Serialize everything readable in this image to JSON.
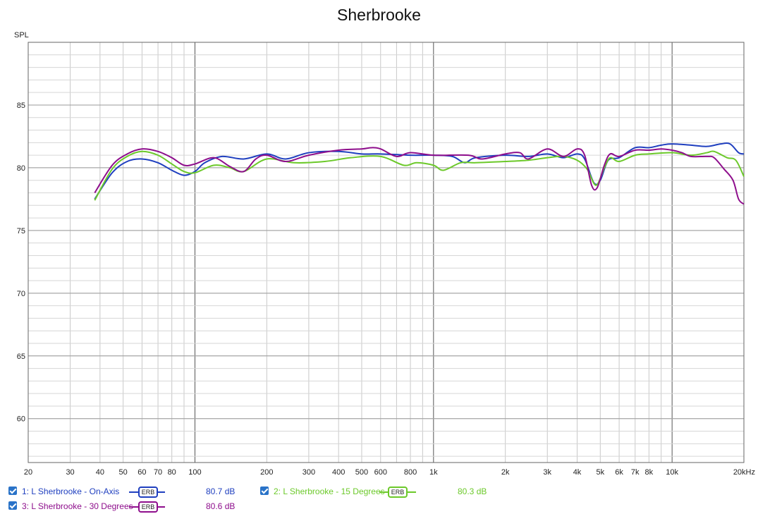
{
  "chart_data": {
    "type": "line",
    "title": "Sherbrooke",
    "ylabel": "SPL",
    "xlabel": "",
    "xscale": "log",
    "xlim": [
      20,
      20000
    ],
    "ylim": [
      56.5,
      90
    ],
    "grid": true,
    "y_ticks": [
      60,
      65,
      70,
      75,
      80,
      85
    ],
    "y_tick_labels": [
      "60",
      "65",
      "70",
      "75",
      "80",
      "85"
    ],
    "x_ticks": [
      20,
      30,
      40,
      50,
      60,
      70,
      80,
      100,
      200,
      300,
      400,
      500,
      600,
      800,
      1000,
      2000,
      3000,
      4000,
      5000,
      6000,
      7000,
      8000,
      10000,
      20000
    ],
    "x_tick_labels": [
      "20",
      "30",
      "40",
      "50",
      "60",
      "70",
      "80",
      "100",
      "200",
      "300",
      "400",
      "500",
      "600",
      "800",
      "1k",
      "2k",
      "3k",
      "4k",
      "5k",
      "6k",
      "7k",
      "8k",
      "10k",
      "20kHz"
    ],
    "legend_position": "bottom",
    "series": [
      {
        "name": "1: L Sherbrooke - On-Axis",
        "color": "#1f3fbf",
        "smoothing": "ERB",
        "average": "80.7 dB",
        "points": [
          [
            38,
            77.5
          ],
          [
            45,
            79.6
          ],
          [
            52,
            80.5
          ],
          [
            60,
            80.7
          ],
          [
            70,
            80.4
          ],
          [
            80,
            79.8
          ],
          [
            90,
            79.4
          ],
          [
            100,
            79.7
          ],
          [
            110,
            80.4
          ],
          [
            130,
            80.9
          ],
          [
            160,
            80.7
          ],
          [
            200,
            81.1
          ],
          [
            240,
            80.7
          ],
          [
            300,
            81.2
          ],
          [
            400,
            81.3
          ],
          [
            500,
            81.1
          ],
          [
            600,
            81.1
          ],
          [
            800,
            81.0
          ],
          [
            1000,
            81.0
          ],
          [
            1200,
            80.9
          ],
          [
            1350,
            80.4
          ],
          [
            1500,
            80.8
          ],
          [
            2000,
            81.0
          ],
          [
            2500,
            80.9
          ],
          [
            3000,
            81.1
          ],
          [
            3500,
            80.8
          ],
          [
            4000,
            81.1
          ],
          [
            4300,
            80.7
          ],
          [
            4700,
            78.8
          ],
          [
            5000,
            79.0
          ],
          [
            5400,
            80.6
          ],
          [
            6000,
            80.8
          ],
          [
            7000,
            81.6
          ],
          [
            8000,
            81.6
          ],
          [
            9000,
            81.8
          ],
          [
            10000,
            81.9
          ],
          [
            12000,
            81.8
          ],
          [
            14000,
            81.7
          ],
          [
            16000,
            81.9
          ],
          [
            17500,
            81.9
          ],
          [
            19000,
            81.2
          ],
          [
            20000,
            81.1
          ]
        ]
      },
      {
        "name": "2: L Sherbrooke - 15 Degrees",
        "color": "#6cc92a",
        "smoothing": "ERB",
        "average": "80.3 dB",
        "points": [
          [
            38,
            77.4
          ],
          [
            45,
            79.9
          ],
          [
            52,
            80.9
          ],
          [
            60,
            81.3
          ],
          [
            70,
            81.0
          ],
          [
            80,
            80.3
          ],
          [
            90,
            79.7
          ],
          [
            100,
            79.6
          ],
          [
            120,
            80.2
          ],
          [
            140,
            80.0
          ],
          [
            160,
            79.7
          ],
          [
            200,
            80.7
          ],
          [
            260,
            80.4
          ],
          [
            350,
            80.5
          ],
          [
            450,
            80.8
          ],
          [
            600,
            80.9
          ],
          [
            750,
            80.2
          ],
          [
            850,
            80.4
          ],
          [
            1000,
            80.2
          ],
          [
            1100,
            79.8
          ],
          [
            1300,
            80.4
          ],
          [
            1500,
            80.4
          ],
          [
            2000,
            80.5
          ],
          [
            2500,
            80.6
          ],
          [
            3000,
            80.8
          ],
          [
            3500,
            80.9
          ],
          [
            4000,
            80.6
          ],
          [
            4400,
            79.9
          ],
          [
            4800,
            78.6
          ],
          [
            5200,
            80.0
          ],
          [
            5500,
            80.8
          ],
          [
            6000,
            80.5
          ],
          [
            7000,
            81.0
          ],
          [
            8000,
            81.1
          ],
          [
            10000,
            81.2
          ],
          [
            12000,
            81.0
          ],
          [
            14000,
            81.2
          ],
          [
            15000,
            81.3
          ],
          [
            17000,
            80.8
          ],
          [
            18500,
            80.6
          ],
          [
            20000,
            79.3
          ]
        ]
      },
      {
        "name": "3: L Sherbrooke - 30 Degrees",
        "color": "#8e0e8c",
        "smoothing": "ERB",
        "average": "80.6 dB",
        "points": [
          [
            38,
            78.0
          ],
          [
            45,
            80.2
          ],
          [
            52,
            81.1
          ],
          [
            60,
            81.5
          ],
          [
            70,
            81.3
          ],
          [
            80,
            80.8
          ],
          [
            90,
            80.2
          ],
          [
            100,
            80.3
          ],
          [
            120,
            80.8
          ],
          [
            140,
            80.1
          ],
          [
            160,
            79.7
          ],
          [
            180,
            80.7
          ],
          [
            200,
            81.0
          ],
          [
            240,
            80.5
          ],
          [
            300,
            81.0
          ],
          [
            400,
            81.4
          ],
          [
            500,
            81.5
          ],
          [
            550,
            81.6
          ],
          [
            600,
            81.5
          ],
          [
            700,
            80.9
          ],
          [
            800,
            81.2
          ],
          [
            1000,
            81.0
          ],
          [
            1400,
            81.0
          ],
          [
            1600,
            80.7
          ],
          [
            2000,
            81.1
          ],
          [
            2300,
            81.2
          ],
          [
            2500,
            80.7
          ],
          [
            3000,
            81.5
          ],
          [
            3500,
            80.9
          ],
          [
            4000,
            81.5
          ],
          [
            4300,
            81.0
          ],
          [
            4600,
            78.6
          ],
          [
            4850,
            78.4
          ],
          [
            5200,
            80.2
          ],
          [
            5500,
            81.1
          ],
          [
            6000,
            80.9
          ],
          [
            7000,
            81.4
          ],
          [
            8000,
            81.4
          ],
          [
            9000,
            81.5
          ],
          [
            10000,
            81.4
          ],
          [
            11000,
            81.2
          ],
          [
            12000,
            80.9
          ],
          [
            14000,
            80.9
          ],
          [
            15000,
            80.8
          ],
          [
            16500,
            79.9
          ],
          [
            18000,
            79.0
          ],
          [
            19000,
            77.5
          ],
          [
            20000,
            77.1
          ]
        ]
      }
    ]
  }
}
